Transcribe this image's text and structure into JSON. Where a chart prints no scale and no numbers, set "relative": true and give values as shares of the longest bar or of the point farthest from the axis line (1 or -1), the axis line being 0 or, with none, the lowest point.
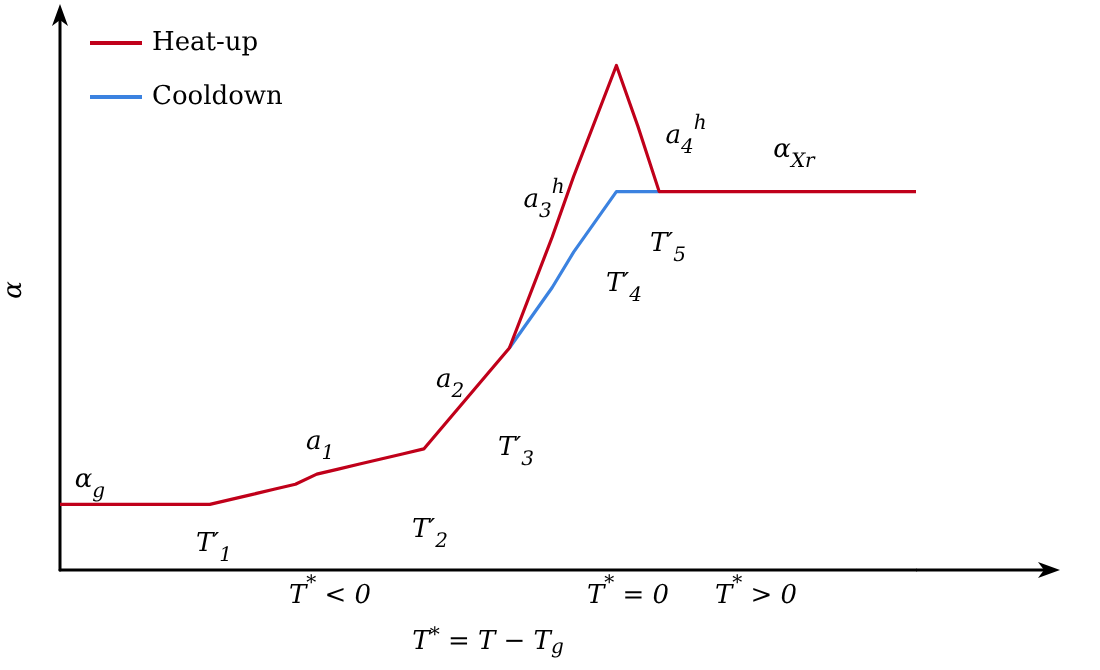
{
  "chart_data": {
    "type": "line",
    "relative": true,
    "xlabel": "T$^{*}$ = T − T$_{g}$",
    "ylabel": "α",
    "legend": "top left",
    "grid": false,
    "marker": "none",
    "categories": [
      null,
      null,
      null,
      null,
      null,
      null,
      null,
      null,
      null,
      null,
      null,
      null,
      null,
      null,
      null,
      null,
      null,
      null,
      null,
      null,
      null,
      null,
      null,
      null,
      null,
      null,
      null,
      null,
      null,
      null,
      null,
      null,
      null,
      null,
      null,
      null,
      null,
      null,
      null,
      null,
      null
    ],
    "series": [
      {
        "name": "Heat-up",
        "color": "#c0001a",
        "values": [
          0.13,
          0.13,
          0.13,
          0.13,
          0.13,
          0.13,
          0.13,
          0.13,
          0.14,
          0.15,
          0.16,
          0.17,
          0.19,
          0.2,
          0.21,
          0.22,
          0.23,
          0.24,
          0.29,
          0.34,
          0.39,
          0.44,
          0.55,
          0.66,
          0.78,
          0.89,
          1,
          0.88,
          0.75,
          0.75,
          0.75,
          0.75,
          0.75,
          0.75,
          0.75,
          0.75,
          0.75,
          0.75,
          0.75,
          0.75,
          0.75
        ]
      },
      {
        "name": "Cooldown",
        "color": "#3b82e0",
        "values": [
          null,
          null,
          null,
          null,
          null,
          null,
          null,
          null,
          null,
          null,
          null,
          null,
          null,
          null,
          null,
          null,
          null,
          null,
          null,
          null,
          null,
          0.44,
          0.5,
          0.56,
          0.63,
          0.69,
          0.75,
          0.75,
          0.75,
          null,
          null,
          null,
          null,
          null,
          null,
          null,
          null,
          null,
          null,
          null,
          null
        ]
      }
    ],
    "annotations": [
      "α$_{g}$",
      "a$_{1}$",
      "a$_{2}$",
      "a$_{3}$$^{h}$",
      "a$_{4}$$^{h}$",
      "α$_{Xr}$",
      "T′$_{1}$",
      "T′$_{2}$",
      "T′$_{3}$",
      "T′$_{4}$",
      "T′$_{5}$",
      "T$^{*}$ < 0",
      "T$^{*}$ = 0",
      "T$^{*}$ > 0"
    ]
  }
}
